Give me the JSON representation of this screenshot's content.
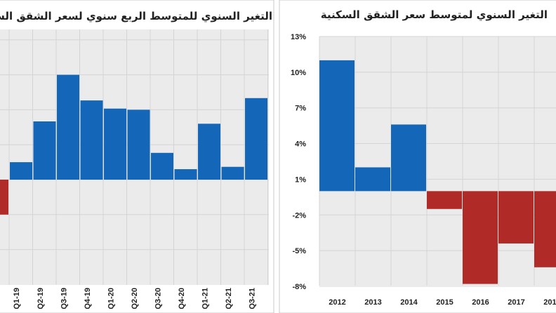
{
  "chart_data": [
    {
      "type": "bar",
      "title": "التغير السنوي للمتوسط الربع سنوي لسعر الشقق السكنية",
      "categories": [
        "Q1-19",
        "Q2-19",
        "Q3-19",
        "Q4-19",
        "Q1-20",
        "Q2-20",
        "Q3-20",
        "Q4-20",
        "Q1-21",
        "Q2-21",
        "Q3-21"
      ],
      "values": [
        1.5,
        5.0,
        9.0,
        6.8,
        6.1,
        6.0,
        2.3,
        0.9,
        4.8,
        1.1,
        7.0
      ],
      "leading_partial": {
        "category": "Q4-18",
        "value": -3.0
      },
      "ylim": [
        -6,
        12
      ],
      "positive_color": "#1467b8",
      "negative_color": "#b02b27",
      "grid": true
    },
    {
      "type": "bar",
      "title": "التغير السنوي لمتوسط سعر الشقق السكنية",
      "categories": [
        "2012",
        "2013",
        "2014",
        "2015",
        "2016",
        "2017",
        "2018"
      ],
      "values": [
        11.0,
        2.0,
        5.6,
        -1.5,
        -7.8,
        -4.4,
        -6.4
      ],
      "yticks": [
        "13%",
        "10%",
        "7%",
        "4%",
        "1%",
        "-2%",
        "-5%",
        "-8%"
      ],
      "ylim": [
        -8,
        13
      ],
      "positive_color": "#1467b8",
      "negative_color": "#b02b27",
      "grid": true
    }
  ]
}
